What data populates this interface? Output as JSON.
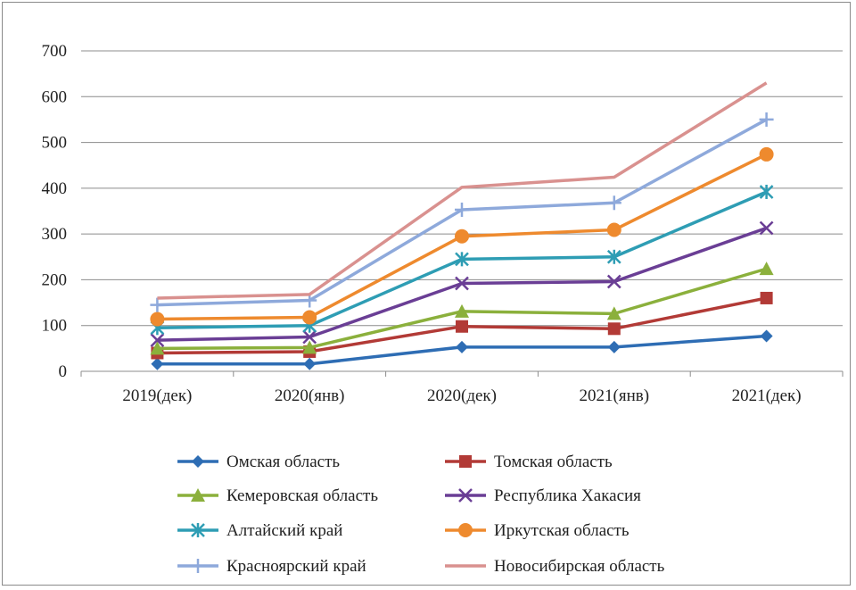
{
  "chart_data": {
    "type": "line",
    "title": "",
    "xlabel": "",
    "ylabel": "",
    "categories": [
      "2019(дек)",
      "2020(янв)",
      "2020(дек)",
      "2021(янв)",
      "2021(дек)"
    ],
    "ylim": [
      0,
      700
    ],
    "yticks": [
      0,
      100,
      200,
      300,
      400,
      500,
      600,
      700
    ],
    "grid": "horizontal",
    "legend_placement": "bottom",
    "series": [
      {
        "name": "Омская область",
        "values": [
          16,
          16,
          53,
          53,
          77
        ],
        "color": "#2E6DB4",
        "marker": "diamond"
      },
      {
        "name": "Томская область",
        "values": [
          40,
          43,
          98,
          93,
          160
        ],
        "color": "#B23A36",
        "marker": "square"
      },
      {
        "name": "Кемеровская область",
        "values": [
          50,
          52,
          131,
          126,
          224
        ],
        "color": "#8BB03C",
        "marker": "triangle"
      },
      {
        "name": "Республика Хакасия",
        "values": [
          68,
          75,
          192,
          196,
          313
        ],
        "color": "#6A3E95",
        "marker": "x"
      },
      {
        "name": "Алтайский край",
        "values": [
          95,
          100,
          245,
          250,
          392
        ],
        "color": "#2E9DB4",
        "marker": "asterisk"
      },
      {
        "name": "Иркутская область",
        "values": [
          114,
          118,
          295,
          309,
          474
        ],
        "color": "#EE8A2E",
        "marker": "circle"
      },
      {
        "name": "Красноярский край",
        "values": [
          145,
          155,
          353,
          368,
          550
        ],
        "color": "#8EA9DB",
        "marker": "plus"
      },
      {
        "name": "Новосибирская область",
        "values": [
          160,
          168,
          402,
          424,
          630
        ],
        "color": "#D9918F",
        "marker": "none"
      }
    ]
  }
}
